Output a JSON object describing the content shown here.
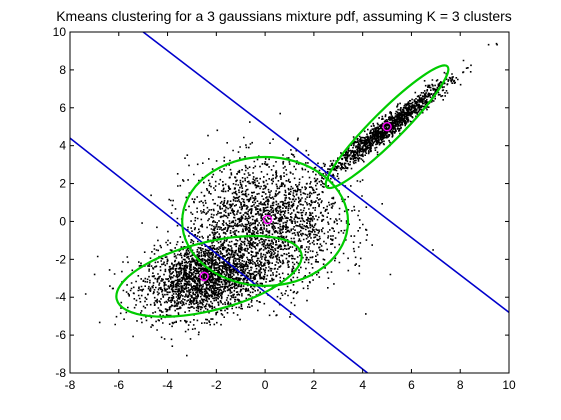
{
  "chart_data": {
    "type": "scatter",
    "title": "Kmeans clustering for a 3 gaussians mixture pdf, assuming K = 3 clusters",
    "xlabel": "",
    "ylabel": "",
    "xlim": [
      -8,
      10
    ],
    "ylim": [
      -8,
      10
    ],
    "xticks": [
      -8,
      -6,
      -4,
      -2,
      0,
      2,
      4,
      6,
      8,
      10
    ],
    "yticks": [
      -8,
      -6,
      -4,
      -2,
      0,
      2,
      4,
      6,
      8,
      10
    ],
    "grid": false,
    "series": [
      {
        "kind": "points",
        "color": "#000000",
        "clusters": [
          {
            "mean": [
              -2.5,
              -3.0
            ],
            "std": [
              1.3,
              1.0
            ],
            "rho": 0.25,
            "count": 2200
          },
          {
            "mean": [
              0.0,
              0.0
            ],
            "std": [
              1.6,
              1.6
            ],
            "rho": 0.0,
            "count": 2000
          },
          {
            "mean": [
              5.0,
              5.0
            ],
            "std": [
              1.25,
              1.25
            ],
            "rho": 0.97,
            "count": 1400
          }
        ]
      }
    ],
    "centroids": {
      "color": "#ff00ff",
      "points": [
        [
          -2.5,
          -2.9
        ],
        [
          0.1,
          0.1
        ],
        [
          5.0,
          5.0
        ]
      ]
    },
    "ellipses": {
      "color": "#00cc00",
      "items": [
        {
          "center": [
            -2.3,
            -2.9
          ],
          "rx": 3.9,
          "ry": 1.8,
          "angle": 14
        },
        {
          "center": [
            0.0,
            0.0
          ],
          "rx": 3.4,
          "ry": 3.4,
          "angle": 0
        },
        {
          "center": [
            5.0,
            5.0
          ],
          "rx": 3.5,
          "ry": 0.8,
          "angle": 45
        }
      ]
    },
    "boundaries": {
      "color": "#0000cc",
      "lines": [
        {
          "p1": [
            -8,
            4.4
          ],
          "p2": [
            4.2,
            -8
          ]
        },
        {
          "p1": [
            -5,
            10
          ],
          "p2": [
            10,
            -4.8
          ]
        }
      ]
    }
  }
}
